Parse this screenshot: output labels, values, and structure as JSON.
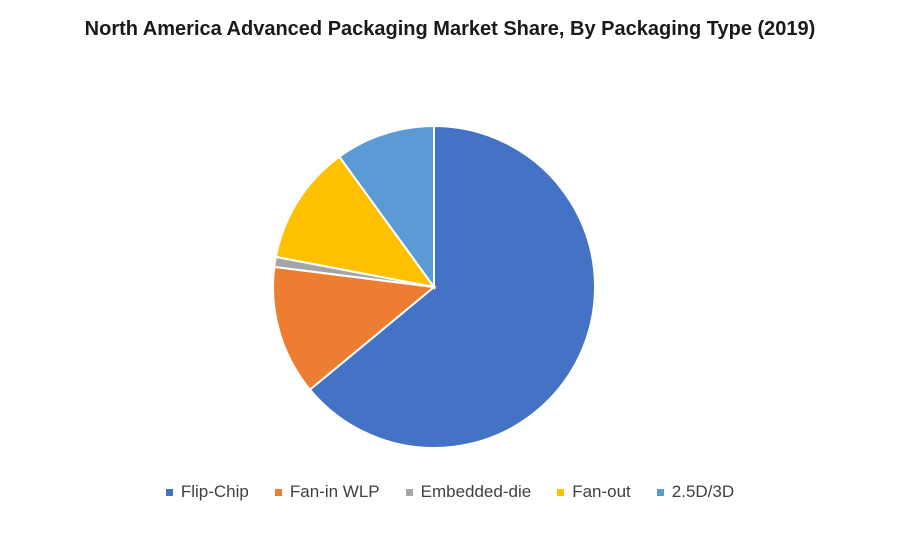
{
  "chart_data": {
    "type": "pie",
    "title": "North America Advanced Packaging Market Share, By Packaging Type (2019)",
    "categories": [
      "Flip-Chip",
      "Fan-in WLP",
      "Embedded-die",
      "Fan-out",
      "2.5D/3D"
    ],
    "values": [
      64,
      13,
      1,
      12,
      10
    ],
    "unit": "%",
    "colors": [
      "#4472C4",
      "#ED7D31",
      "#A5A5A5",
      "#FFC000",
      "#5B9BD5"
    ],
    "legend_position": "bottom",
    "start_angle_deg": 0,
    "direction": "clockwise"
  }
}
